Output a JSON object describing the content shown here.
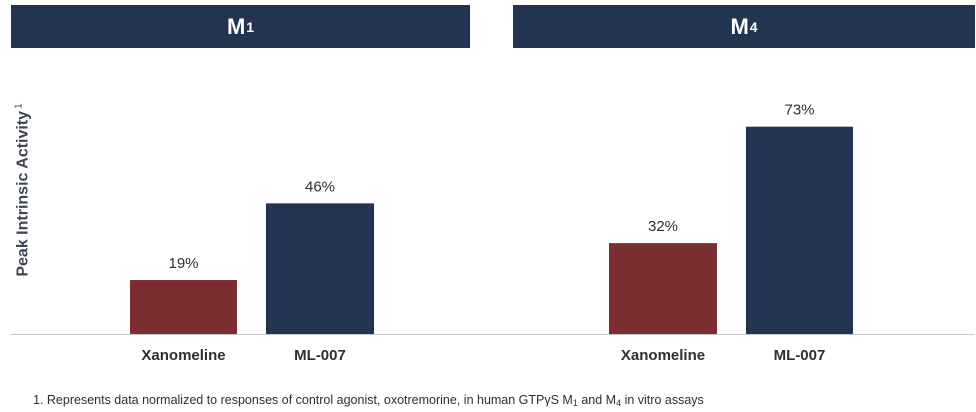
{
  "panels": [
    {
      "title": "M",
      "subscript": "1"
    },
    {
      "title": "M",
      "subscript": "4"
    }
  ],
  "ylabel": {
    "text": "Peak Intrinsic Activity",
    "superscript": "1"
  },
  "footnote": {
    "prefix": "1. Represents data normalized to responses of control agonist, oxotremorine, in human GTPγS M",
    "sub1": "1",
    "middle": " and M",
    "sub2": "4",
    "suffix": " in vitro assays"
  },
  "colors": {
    "header": "#22344f",
    "xanomeline": "#7b2e30",
    "ml007": "#22344f",
    "axis": "#c8c8c8"
  },
  "chart_data": [
    {
      "type": "bar",
      "title": "M1",
      "categories": [
        "Xanomeline",
        "ML-007"
      ],
      "values": [
        19,
        46
      ],
      "value_labels": [
        "19%",
        "46%"
      ],
      "ylabel": "Peak Intrinsic Activity",
      "ylim": [
        0,
        100
      ],
      "grid": false
    },
    {
      "type": "bar",
      "title": "M4",
      "categories": [
        "Xanomeline",
        "ML-007"
      ],
      "values": [
        32,
        73
      ],
      "value_labels": [
        "32%",
        "73%"
      ],
      "ylabel": "Peak Intrinsic Activity",
      "ylim": [
        0,
        100
      ],
      "grid": false
    }
  ]
}
